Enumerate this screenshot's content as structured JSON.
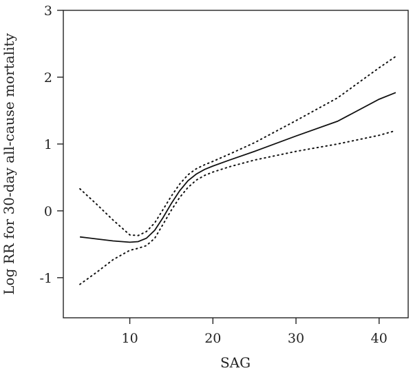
{
  "chart_data": {
    "type": "line",
    "title": "",
    "xlabel": "SAG",
    "ylabel": "Log RR for 30-day all-cause mortality",
    "xlim": [
      2,
      43.5
    ],
    "ylim": [
      -1.6,
      3.0
    ],
    "x_ticks": [
      10,
      20,
      30,
      40
    ],
    "y_ticks": [
      -1,
      0,
      1,
      2,
      3
    ],
    "x_tick_labels": [
      "10",
      "20",
      "30",
      "40"
    ],
    "y_tick_labels": [
      "-1",
      "0",
      "1",
      "2",
      "3"
    ],
    "grid": false,
    "legend": "none",
    "series": [
      {
        "style": "solid",
        "x": [
          4,
          6,
          8,
          10,
          11,
          12,
          13,
          14,
          15,
          16,
          17,
          18,
          19,
          20,
          22,
          25,
          30,
          35,
          40,
          42
        ],
        "y": [
          -0.39,
          -0.42,
          -0.45,
          -0.47,
          -0.46,
          -0.41,
          -0.29,
          -0.1,
          0.11,
          0.3,
          0.45,
          0.55,
          0.62,
          0.67,
          0.76,
          0.89,
          1.12,
          1.34,
          1.67,
          1.77
        ]
      },
      {
        "style": "dotted",
        "x": [
          4,
          6,
          8,
          10,
          11,
          12,
          13,
          14,
          15,
          16,
          17,
          18,
          19,
          20,
          22,
          25,
          30,
          35,
          40,
          42
        ],
        "y": [
          0.33,
          0.1,
          -0.14,
          -0.36,
          -0.37,
          -0.31,
          -0.18,
          0.02,
          0.22,
          0.4,
          0.54,
          0.63,
          0.69,
          0.74,
          0.85,
          1.02,
          1.35,
          1.69,
          2.14,
          2.31
        ]
      },
      {
        "style": "dotted",
        "x": [
          4,
          6,
          8,
          10,
          11,
          12,
          13,
          14,
          15,
          16,
          17,
          18,
          19,
          20,
          22,
          25,
          30,
          35,
          40,
          42
        ],
        "y": [
          -1.1,
          -0.92,
          -0.73,
          -0.59,
          -0.56,
          -0.52,
          -0.41,
          -0.2,
          0.01,
          0.2,
          0.35,
          0.46,
          0.53,
          0.58,
          0.66,
          0.76,
          0.89,
          1.0,
          1.13,
          1.2
        ]
      }
    ]
  }
}
